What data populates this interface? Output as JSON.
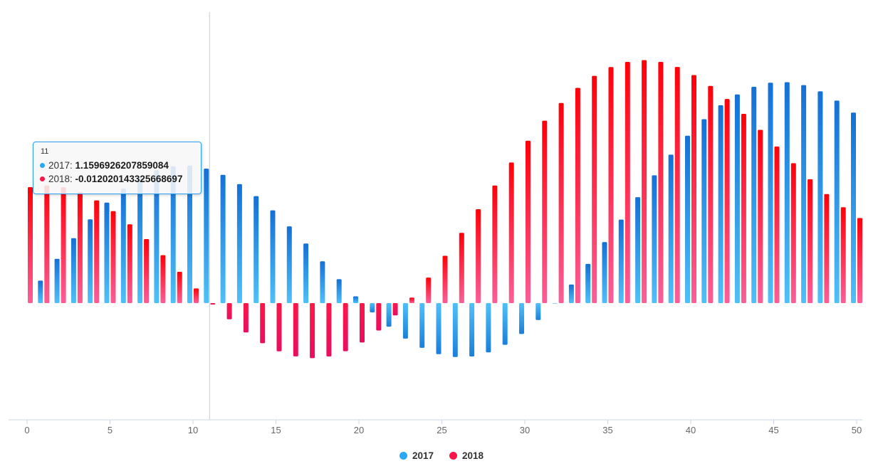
{
  "chart_data": {
    "type": "bar",
    "title": "",
    "xlabel": "",
    "ylabel": "",
    "categories": [
      0,
      1,
      2,
      3,
      4,
      5,
      6,
      7,
      8,
      9,
      10,
      11,
      12,
      13,
      14,
      15,
      16,
      17,
      18,
      19,
      20,
      21,
      22,
      23,
      24,
      25,
      26,
      27,
      28,
      29,
      30,
      31,
      32,
      33,
      34,
      35,
      36,
      37,
      38,
      39,
      40,
      41,
      42,
      43,
      44,
      45,
      46,
      47,
      48,
      49,
      50
    ],
    "series": [
      {
        "name": "2017",
        "color": "#29a9f3",
        "values": [
          0,
          0.193648,
          0.38202,
          0.56,
          0.722788,
          0.866044,
          0.986025,
          1.079693,
          1.144808,
          1.18,
          1.184808,
          1.1596926207859084,
          1.106025,
          1.026044,
          0.922788,
          0.8,
          0.66202,
          0.513648,
          0.36,
          0.206352,
          0.05798,
          -0.08,
          -0.202788,
          -0.306044,
          -0.386025,
          -0.439693,
          -0.464808,
          -0.46,
          -0.424808,
          -0.359693,
          -0.266025,
          -0.146044,
          -0.002788,
          0.16,
          0.33798,
          0.526352,
          0.72,
          0.913648,
          1.10202,
          1.28,
          1.442788,
          1.586044,
          1.706025,
          1.799693,
          1.864808,
          1.9,
          1.904808,
          1.879693,
          1.826025,
          1.746044,
          1.642788
        ]
      },
      {
        "name": "2018",
        "color": "#f9164a",
        "values": [
          1,
          1.014808,
          0.999693,
          0.956025,
          0.886044,
          0.792788,
          0.68,
          0.55202,
          0.413648,
          0.27,
          0.126352,
          -0.012020143325668697,
          -0.14,
          -0.252788,
          -0.346044,
          -0.416025,
          -0.459693,
          -0.474808,
          -0.46,
          -0.414808,
          -0.339693,
          -0.236025,
          -0.106044,
          0.047212,
          0.22,
          0.40798,
          0.606352,
          0.81,
          1.013648,
          1.21202,
          1.4,
          1.572788,
          1.726044,
          1.856025,
          1.959693,
          2.034808,
          2.08,
          2.094808,
          2.079693,
          2.036025,
          1.966044,
          1.872788,
          1.76,
          1.63202,
          1.493648,
          1.35,
          1.206352,
          1.06798,
          0.94,
          0.827212,
          0.733956
        ]
      }
    ],
    "x_tick_labels": [
      "0",
      "5",
      "10",
      "15",
      "20",
      "25",
      "30",
      "35",
      "40",
      "45",
      "50"
    ],
    "x_tick_values": [
      0,
      5,
      10,
      15,
      20,
      25,
      30,
      35,
      40,
      45,
      50
    ],
    "ylim": [
      -1,
      2.5
    ],
    "grid": false,
    "legend_position": "bottom-center",
    "crosshair_x": 11
  },
  "tooltip": {
    "title": "11",
    "rows": [
      {
        "label": "2017: ",
        "value": "1.1596926207859084"
      },
      {
        "label": "2018: ",
        "value": "-0.012020143325668697"
      }
    ]
  },
  "legend": {
    "items": [
      "2017",
      "2018"
    ]
  },
  "colors": {
    "series_2017": "#29a9f3",
    "series_2018": "#f9164a",
    "bar_blue_top": "#1470d6",
    "bar_blue_bottom": "#4fc0f8",
    "bar_blue_neg_top": "#4fc0f8",
    "bar_blue_neg_bottom": "#1b7fdb",
    "bar_red_top": "#ff0008",
    "bar_red_bottom": "#fa5f98",
    "bar_red_neg_top": "#fb1747",
    "bar_red_neg_bottom": "#e90e60",
    "axis_line": "#ccd6eb",
    "tick_label": "#666666",
    "crosshair": "#cccccc",
    "tooltip_border": "#2aa1f3",
    "tooltip_background": "rgba(247,247,247,0.88)"
  }
}
